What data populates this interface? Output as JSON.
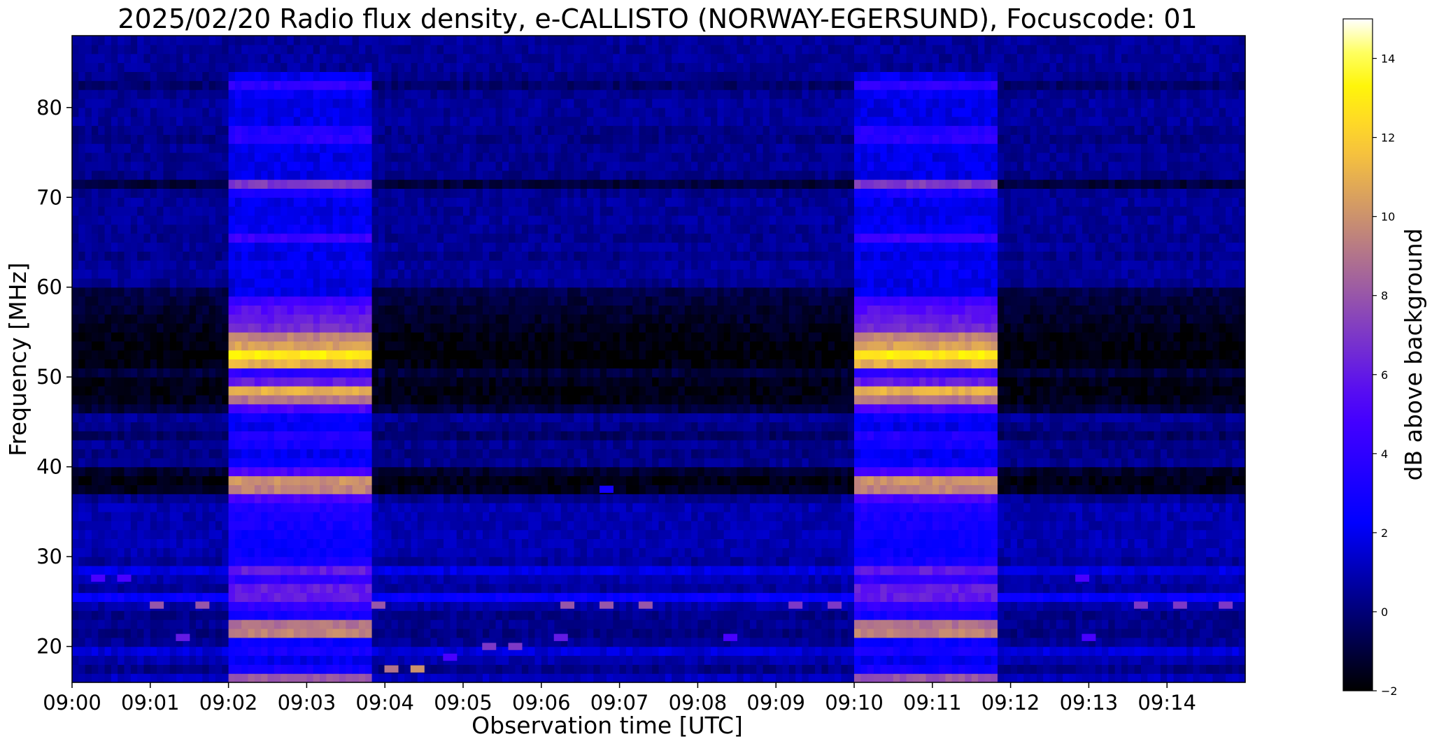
{
  "chart_data": {
    "type": "heatmap",
    "title": "2025/02/20  Radio flux density, e-CALLISTO (NORWAY-EGERSUND), Focuscode: 01",
    "xlabel": "Observation time [UTC]",
    "ylabel": "Frequency [MHz]",
    "colorbar_label": "dB above background",
    "colormap": "gnuplot2",
    "x_unit": "UTC time",
    "x_range": [
      "09:00",
      "09:15"
    ],
    "y_range": [
      16,
      88
    ],
    "value_range": [
      -2,
      15
    ],
    "x_ticks": [
      "09:00",
      "09:01",
      "09:02",
      "09:03",
      "09:04",
      "09:05",
      "09:06",
      "09:07",
      "09:08",
      "09:09",
      "09:10",
      "09:11",
      "09:12",
      "09:13",
      "09:14"
    ],
    "y_ticks": [
      20,
      30,
      40,
      50,
      60,
      70,
      80
    ],
    "colorbar_ticks": [
      -2,
      0,
      2,
      4,
      6,
      8,
      10,
      12,
      14
    ],
    "background_level_dB": 0.6,
    "calibration_segments": [
      {
        "start": "09:02:00",
        "end": "09:03:50"
      },
      {
        "start": "09:10:00",
        "end": "09:11:50"
      }
    ],
    "frequency_profile": [
      {
        "f": 16,
        "quiet": 1.2,
        "cal": 8.0
      },
      {
        "f": 17,
        "quiet": 0.3,
        "cal": 3.0
      },
      {
        "f": 18,
        "quiet": 0.9,
        "cal": 2.0
      },
      {
        "f": 19,
        "quiet": 1.6,
        "cal": 3.0
      },
      {
        "f": 20,
        "quiet": 0.5,
        "cal": 2.5
      },
      {
        "f": 21,
        "quiet": 0.2,
        "cal": 9.5
      },
      {
        "f": 22,
        "quiet": 0.4,
        "cal": 9.0
      },
      {
        "f": 23,
        "quiet": 0.3,
        "cal": 3.0
      },
      {
        "f": 24,
        "quiet": 0.8,
        "cal": 4.0
      },
      {
        "f": 25,
        "quiet": 2.4,
        "cal": 6.0
      },
      {
        "f": 26,
        "quiet": 0.6,
        "cal": 6.0
      },
      {
        "f": 27,
        "quiet": 0.9,
        "cal": 4.0
      },
      {
        "f": 28,
        "quiet": 1.8,
        "cal": 6.0
      },
      {
        "f": 29,
        "quiet": 0.6,
        "cal": 3.0
      },
      {
        "f": 30,
        "quiet": 0.9,
        "cal": 2.5
      },
      {
        "f": 31,
        "quiet": 1.0,
        "cal": 2.5
      },
      {
        "f": 32,
        "quiet": 1.0,
        "cal": 2.6
      },
      {
        "f": 33,
        "quiet": 0.9,
        "cal": 3.0
      },
      {
        "f": 34,
        "quiet": 0.9,
        "cal": 3.0
      },
      {
        "f": 35,
        "quiet": 1.0,
        "cal": 3.5
      },
      {
        "f": 36,
        "quiet": 0.4,
        "cal": 5.0
      },
      {
        "f": 37,
        "quiet": -1.5,
        "cal": 9.5
      },
      {
        "f": 38,
        "quiet": -1.7,
        "cal": 10.0
      },
      {
        "f": 39,
        "quiet": -1.2,
        "cal": 5.0
      },
      {
        "f": 40,
        "quiet": 0.4,
        "cal": 2.5
      },
      {
        "f": 41,
        "quiet": 0.2,
        "cal": 2.0
      },
      {
        "f": 42,
        "quiet": 0.4,
        "cal": 3.0
      },
      {
        "f": 43,
        "quiet": -0.3,
        "cal": 3.5
      },
      {
        "f": 44,
        "quiet": 0.2,
        "cal": 2.0
      },
      {
        "f": 45,
        "quiet": 0.5,
        "cal": 2.5
      },
      {
        "f": 46,
        "quiet": -1.0,
        "cal": 5.0
      },
      {
        "f": 47,
        "quiet": -1.6,
        "cal": 9.0
      },
      {
        "f": 48,
        "quiet": -1.7,
        "cal": 11.0
      },
      {
        "f": 49,
        "quiet": -1.6,
        "cal": 6.0
      },
      {
        "f": 50,
        "quiet": -1.0,
        "cal": 4.0
      },
      {
        "f": 51,
        "quiet": -1.7,
        "cal": 11.0
      },
      {
        "f": 52,
        "quiet": -1.9,
        "cal": 13.0
      },
      {
        "f": 53,
        "quiet": -1.8,
        "cal": 10.5
      },
      {
        "f": 54,
        "quiet": -1.7,
        "cal": 9.5
      },
      {
        "f": 55,
        "quiet": -1.5,
        "cal": 6.5
      },
      {
        "f": 56,
        "quiet": -1.3,
        "cal": 6.0
      },
      {
        "f": 57,
        "quiet": -1.2,
        "cal": 5.5
      },
      {
        "f": 58,
        "quiet": -1.0,
        "cal": 4.5
      },
      {
        "f": 59,
        "quiet": -0.8,
        "cal": 2.0
      },
      {
        "f": 60,
        "quiet": 0.4,
        "cal": 1.8
      },
      {
        "f": 61,
        "quiet": 0.6,
        "cal": 2.0
      },
      {
        "f": 62,
        "quiet": 0.6,
        "cal": 2.2
      },
      {
        "f": 63,
        "quiet": 0.3,
        "cal": 1.8
      },
      {
        "f": 64,
        "quiet": 0.6,
        "cal": 2.0
      },
      {
        "f": 65,
        "quiet": 0.4,
        "cal": 4.5
      },
      {
        "f": 66,
        "quiet": 0.5,
        "cal": 2.2
      },
      {
        "f": 67,
        "quiet": 0.6,
        "cal": 2.0
      },
      {
        "f": 68,
        "quiet": 0.5,
        "cal": 1.8
      },
      {
        "f": 69,
        "quiet": 0.6,
        "cal": 2.0
      },
      {
        "f": 70,
        "quiet": 0.4,
        "cal": 3.0
      },
      {
        "f": 71,
        "quiet": -1.0,
        "cal": 7.0
      },
      {
        "f": 72,
        "quiet": 0.3,
        "cal": 1.8
      },
      {
        "f": 73,
        "quiet": 0.5,
        "cal": 2.0
      },
      {
        "f": 74,
        "quiet": 0.4,
        "cal": 1.8
      },
      {
        "f": 75,
        "quiet": 0.5,
        "cal": 2.0
      },
      {
        "f": 76,
        "quiet": 0.2,
        "cal": 3.8
      },
      {
        "f": 77,
        "quiet": 0.3,
        "cal": 3.5
      },
      {
        "f": 78,
        "quiet": 0.6,
        "cal": 1.8
      },
      {
        "f": 79,
        "quiet": 0.5,
        "cal": 1.8
      },
      {
        "f": 80,
        "quiet": 0.6,
        "cal": 1.8
      },
      {
        "f": 81,
        "quiet": 0.4,
        "cal": 2.2
      },
      {
        "f": 82,
        "quiet": -0.2,
        "cal": 4.0
      },
      {
        "f": 83,
        "quiet": 0.3,
        "cal": 2.0
      },
      {
        "f": 84,
        "quiet": 0.5,
        "cal": 0.6
      },
      {
        "f": 85,
        "quiet": 0.6,
        "cal": 0.6
      },
      {
        "f": 86,
        "quiet": 0.5,
        "cal": 0.6
      },
      {
        "f": 87,
        "quiet": 0.6,
        "cal": 0.6
      },
      {
        "f": 88,
        "quiet": 0.5,
        "cal": 0.6
      }
    ],
    "interference_bursts": [
      {
        "t": "09:00:20",
        "f": 27.6,
        "dB": 5
      },
      {
        "t": "09:00:40",
        "f": 27.6,
        "dB": 5
      },
      {
        "t": "09:01:05",
        "f": 24.6,
        "dB": 8
      },
      {
        "t": "09:01:40",
        "f": 24.6,
        "dB": 8
      },
      {
        "t": "09:01:25",
        "f": 21.0,
        "dB": 6
      },
      {
        "t": "09:03:55",
        "f": 24.6,
        "dB": 8
      },
      {
        "t": "09:04:05",
        "f": 17.5,
        "dB": 9
      },
      {
        "t": "09:04:25",
        "f": 17.5,
        "dB": 10
      },
      {
        "t": "09:04:50",
        "f": 18.8,
        "dB": 5
      },
      {
        "t": "09:05:20",
        "f": 20.0,
        "dB": 7
      },
      {
        "t": "09:05:40",
        "f": 20.0,
        "dB": 7
      },
      {
        "t": "09:06:15",
        "f": 21.0,
        "dB": 6
      },
      {
        "t": "09:06:20",
        "f": 24.6,
        "dB": 8
      },
      {
        "t": "09:06:50",
        "f": 24.6,
        "dB": 8
      },
      {
        "t": "09:07:20",
        "f": 24.6,
        "dB": 8
      },
      {
        "t": "09:08:25",
        "f": 21.0,
        "dB": 5
      },
      {
        "t": "09:09:15",
        "f": 24.6,
        "dB": 7
      },
      {
        "t": "09:09:45",
        "f": 24.6,
        "dB": 7
      },
      {
        "t": "09:12:55",
        "f": 27.6,
        "dB": 5
      },
      {
        "t": "09:13:00",
        "f": 21.0,
        "dB": 5
      },
      {
        "t": "09:13:40",
        "f": 24.6,
        "dB": 7
      },
      {
        "t": "09:14:10",
        "f": 24.6,
        "dB": 7
      },
      {
        "t": "09:14:45",
        "f": 24.6,
        "dB": 7
      },
      {
        "t": "09:06:50",
        "f": 37.5,
        "dB": 3
      }
    ]
  }
}
